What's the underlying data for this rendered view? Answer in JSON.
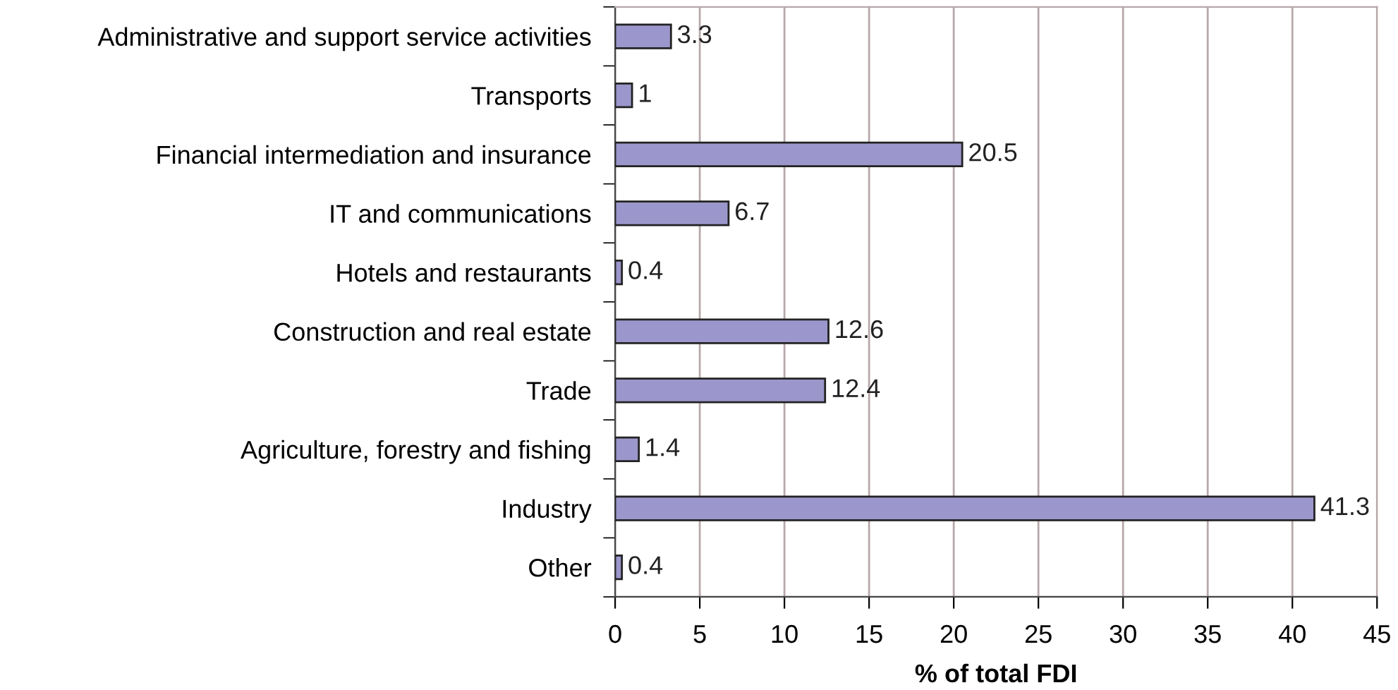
{
  "chart_data": {
    "type": "bar",
    "orientation": "horizontal",
    "xlabel": "% of total FDI",
    "categories": [
      "Administrative and support service activities",
      "Transports",
      "Financial intermediation and insurance",
      "IT and communications",
      "Hotels and restaurants",
      "Construction and real estate",
      "Trade",
      "Agriculture, forestry and fishing",
      "Industry",
      "Other"
    ],
    "values": [
      3.3,
      1,
      20.5,
      6.7,
      0.4,
      12.6,
      12.4,
      1.4,
      41.3,
      0.4
    ],
    "color": "#9b97cc",
    "xlim": [
      0,
      45
    ],
    "xticks": [
      0,
      5,
      10,
      15,
      20,
      25,
      30,
      35,
      40,
      45
    ],
    "grid": "x",
    "data_labels": true,
    "legend": false
  }
}
